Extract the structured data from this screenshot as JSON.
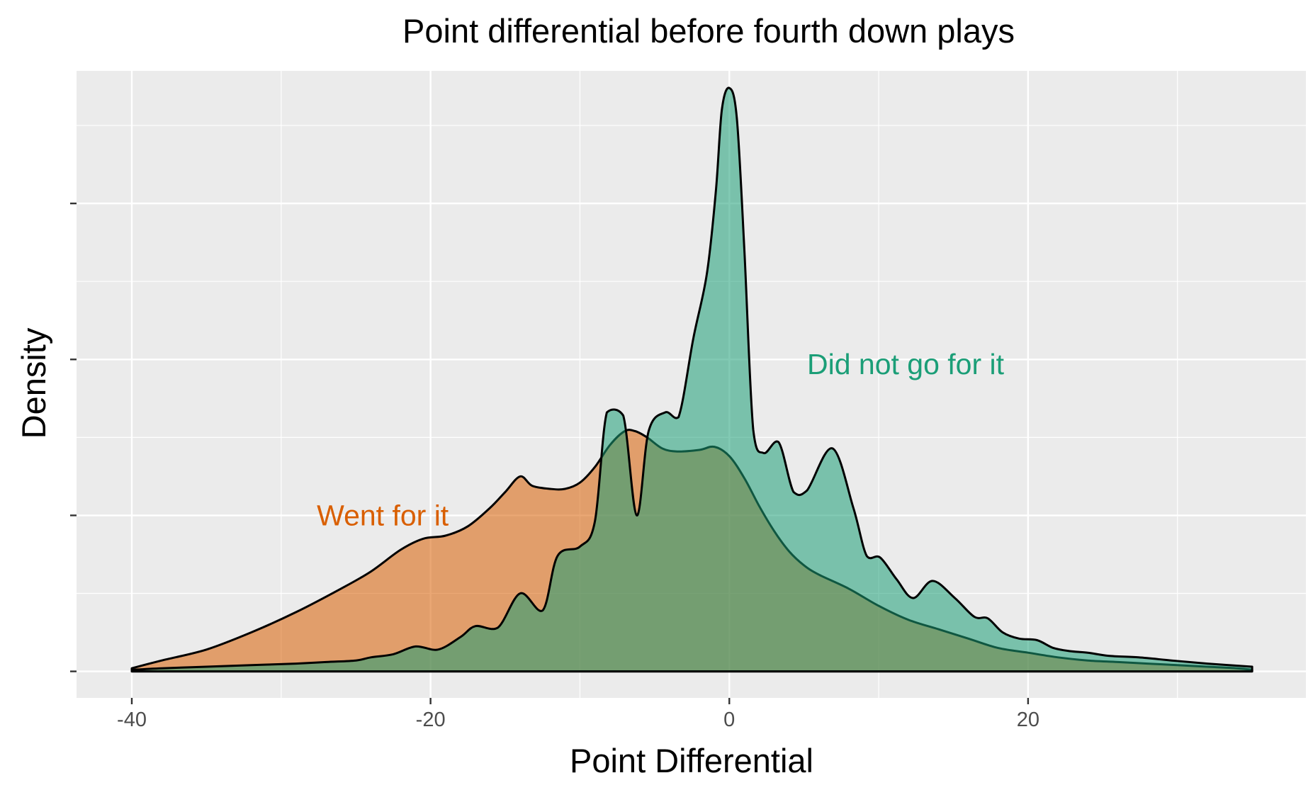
{
  "chart_data": {
    "type": "area",
    "title": "Point differential before fourth down plays",
    "xlabel": "Point Differential",
    "ylabel": "Density",
    "xlim": [
      -43.7,
      38.6
    ],
    "ylim": [
      -0.0017,
      0.0385
    ],
    "x_ticks": [
      -40,
      -20,
      0,
      20
    ],
    "x_tick_labels": [
      "-40",
      "-20",
      "0",
      "20"
    ],
    "y_ticks": [
      0,
      0.01,
      0.02,
      0.03
    ],
    "y_tick_labels": [
      "",
      "",
      "",
      ""
    ],
    "grid": true,
    "legend": "none",
    "background": "#ebebeb",
    "series": [
      {
        "name": "Went for it",
        "color": "#d95f02",
        "fill_opacity": 0.55,
        "x": [
          -40,
          -38,
          -35,
          -32,
          -29,
          -26,
          -24,
          -22,
          -20.5,
          -19,
          -17.5,
          -16,
          -15,
          -14,
          -13.2,
          -12,
          -11,
          -10,
          -9,
          -8,
          -7,
          -6.3,
          -5.5,
          -4.5,
          -3.5,
          -2,
          -1,
          0,
          1,
          2,
          3,
          4,
          5,
          6,
          8,
          10,
          12,
          14,
          16,
          18,
          20,
          22,
          24,
          26,
          28,
          30,
          32,
          34,
          35
        ],
        "y": [
          0.0002,
          0.0007,
          0.0014,
          0.0025,
          0.0038,
          0.0053,
          0.0064,
          0.0078,
          0.0085,
          0.0087,
          0.0093,
          0.0105,
          0.0115,
          0.0125,
          0.0119,
          0.0117,
          0.0117,
          0.0121,
          0.0131,
          0.0145,
          0.0154,
          0.0154,
          0.015,
          0.0143,
          0.0141,
          0.0142,
          0.0144,
          0.0138,
          0.0124,
          0.0106,
          0.009,
          0.0077,
          0.0068,
          0.0062,
          0.0053,
          0.0042,
          0.0033,
          0.0027,
          0.0021,
          0.0015,
          0.0012,
          0.0009,
          0.0007,
          0.0006,
          0.0005,
          0.0004,
          0.0003,
          0.0002,
          0.0001
        ]
      },
      {
        "name": "Did not go for it",
        "color": "#1b9e77",
        "fill_opacity": 0.55,
        "x": [
          -40,
          -38,
          -35,
          -32,
          -29,
          -27,
          -25,
          -24,
          -22.5,
          -21,
          -19.5,
          -18,
          -17,
          -15.5,
          -14,
          -12.5,
          -11.5,
          -10,
          -9,
          -8.2,
          -7.1,
          -6.2,
          -5.4,
          -4.3,
          -3.4,
          -2.4,
          -1.5,
          -0.9,
          -0.5,
          0,
          0.5,
          1,
          1.6,
          2.3,
          3.3,
          4.3,
          5.2,
          6.9,
          8.3,
          9.2,
          10.1,
          11.2,
          12.3,
          13.6,
          15.1,
          16.4,
          17.3,
          18.3,
          19.4,
          20.6,
          21.7,
          22.8,
          24,
          25.4,
          27.4,
          29.6,
          32,
          35
        ],
        "y": [
          0.0001,
          0.0002,
          0.0003,
          0.0004,
          0.0005,
          0.0006,
          0.0007,
          0.0009,
          0.0011,
          0.0016,
          0.0014,
          0.0022,
          0.0029,
          0.0028,
          0.005,
          0.0039,
          0.0074,
          0.008,
          0.0096,
          0.0166,
          0.0164,
          0.01,
          0.0154,
          0.0166,
          0.0163,
          0.0214,
          0.0255,
          0.0308,
          0.036,
          0.0374,
          0.0355,
          0.0272,
          0.0155,
          0.014,
          0.0147,
          0.0115,
          0.0116,
          0.0143,
          0.0105,
          0.0074,
          0.0073,
          0.0059,
          0.0047,
          0.0058,
          0.0047,
          0.0035,
          0.0034,
          0.0025,
          0.0021,
          0.002,
          0.0015,
          0.0013,
          0.0012,
          0.001,
          0.0009,
          0.0007,
          0.0005,
          0.0003
        ]
      }
    ],
    "annotations": [
      {
        "text": "Went for it",
        "x": -23.2,
        "y": 0.01,
        "color": "#d95f02"
      },
      {
        "text": "Did not go for it",
        "x": 11.8,
        "y": 0.0197,
        "color": "#1b9e77"
      }
    ]
  }
}
